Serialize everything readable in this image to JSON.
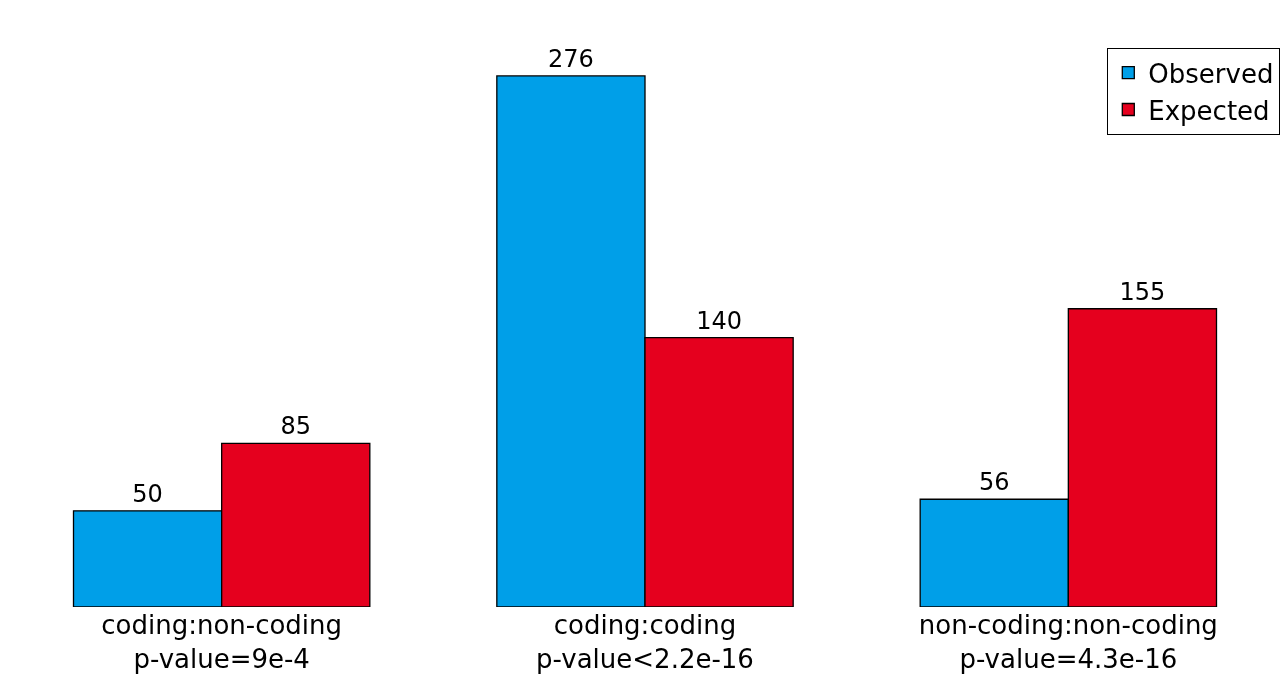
{
  "chart_data": {
    "type": "bar",
    "categories": [
      "coding:non-coding\np-value=9e-4",
      "coding:coding\np-value<2.2e-16",
      "non-coding:non-coding\np-value=4.3e-16"
    ],
    "series": [
      {
        "name": "Observed",
        "color": "#009fe8",
        "values": [
          50,
          276,
          56
        ]
      },
      {
        "name": "Expected",
        "color": "#e5001e",
        "values": [
          85,
          140,
          155
        ]
      }
    ],
    "data_labels": true,
    "legend": "top right"
  }
}
